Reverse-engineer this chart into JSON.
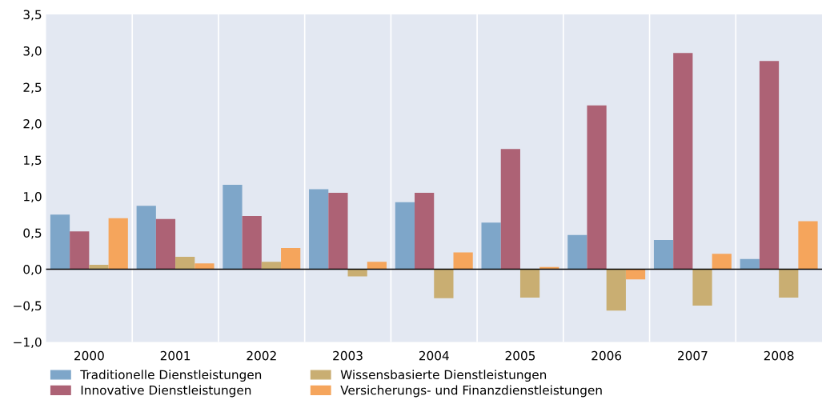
{
  "chart_data": {
    "type": "bar",
    "categories": [
      "2000",
      "2001",
      "2002",
      "2003",
      "2004",
      "2005",
      "2006",
      "2007",
      "2008"
    ],
    "series": [
      {
        "name": "Traditionelle Dienstleistungen",
        "color": "#7ea6c9",
        "values": [
          0.75,
          0.87,
          1.16,
          1.1,
          0.92,
          0.64,
          0.47,
          0.4,
          0.14
        ]
      },
      {
        "name": "Innovative Dienstleistungen",
        "color": "#ad6275",
        "values": [
          0.52,
          0.69,
          0.73,
          1.05,
          1.05,
          1.65,
          2.25,
          2.97,
          2.86
        ]
      },
      {
        "name": "Wissensbasierte Dienstleistungen",
        "color": "#c9ae72",
        "values": [
          0.06,
          0.17,
          0.1,
          -0.1,
          -0.4,
          -0.39,
          -0.57,
          -0.5,
          -0.39
        ]
      },
      {
        "name": "Versicherungs- und Finanzdienstleistungen",
        "color": "#f5a55c",
        "values": [
          0.7,
          0.08,
          0.29,
          0.1,
          0.23,
          0.03,
          -0.14,
          0.21,
          0.66
        ]
      }
    ],
    "ylim": [
      -1.0,
      3.5
    ],
    "yticks": [
      {
        "value": -1.0,
        "label": "−1,0"
      },
      {
        "value": -0.5,
        "label": "−0,5"
      },
      {
        "value": 0,
        "label": "0,0"
      },
      {
        "value": 0.5,
        "label": "0,5"
      },
      {
        "value": 1.0,
        "label": "1,0"
      },
      {
        "value": 1.5,
        "label": "1,5"
      },
      {
        "value": 2.0,
        "label": "2,0"
      },
      {
        "value": 2.5,
        "label": "2,5"
      },
      {
        "value": 3.0,
        "label": "3,0"
      },
      {
        "value": 3.5,
        "label": "3,5"
      }
    ],
    "grid": "x",
    "legend": "bottom"
  }
}
